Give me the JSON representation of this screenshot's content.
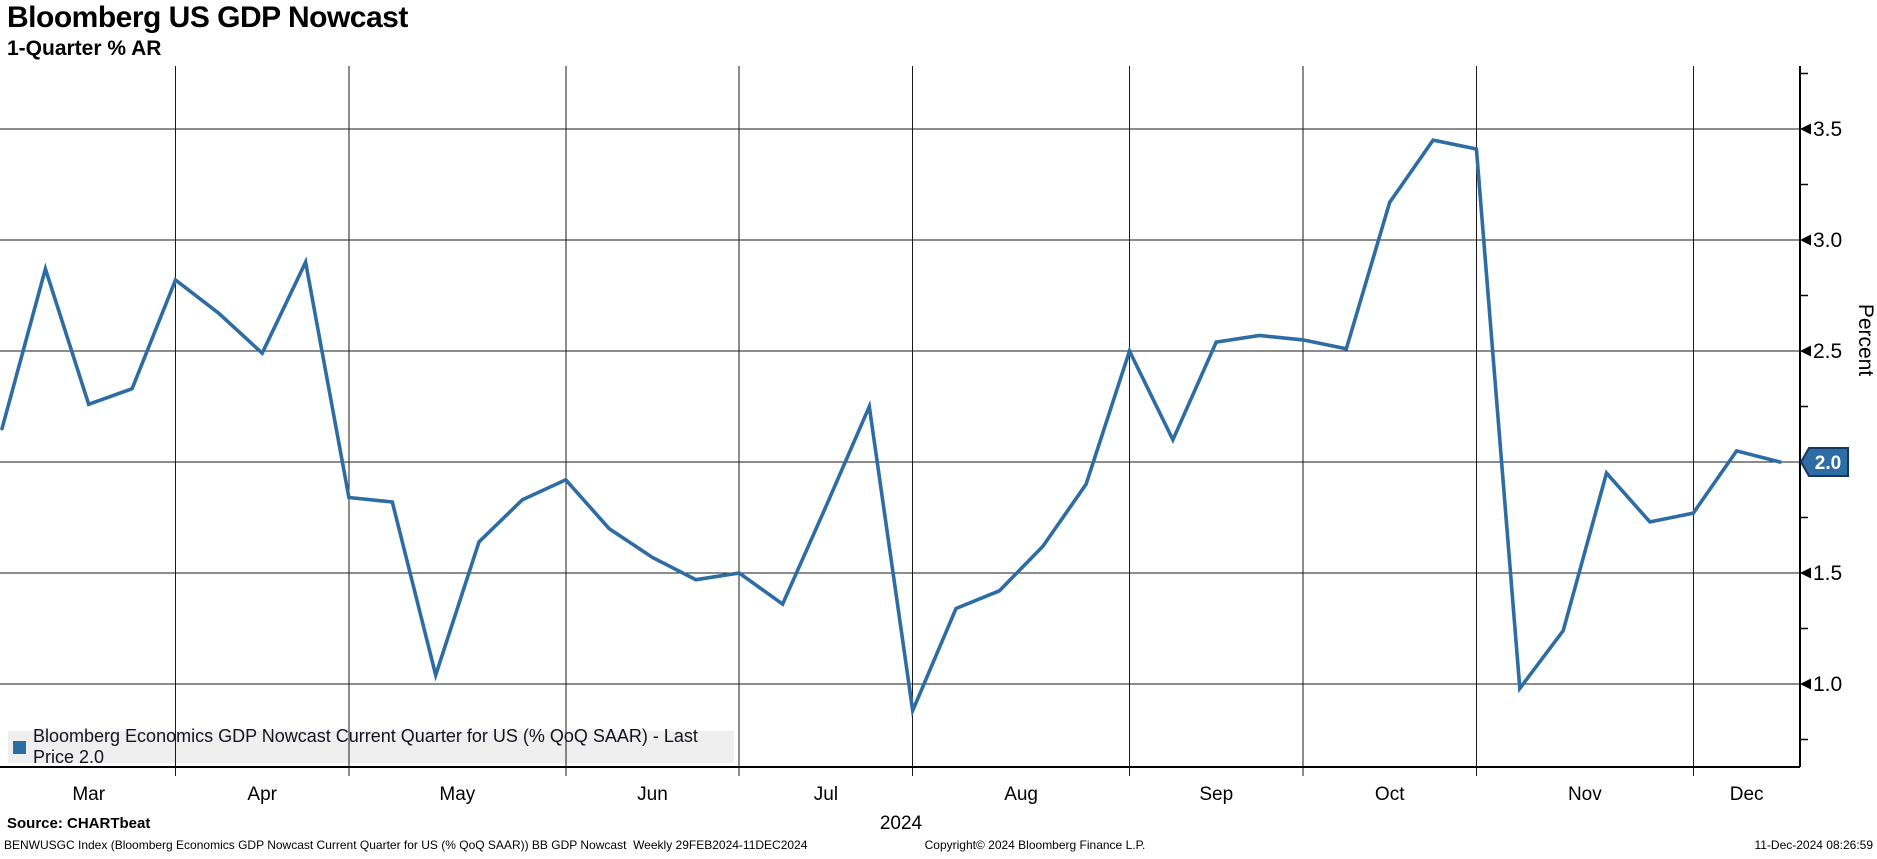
{
  "header": {
    "title": "Bloomberg US GDP Nowcast",
    "subtitle": "1-Quarter % AR"
  },
  "chart_data": {
    "type": "line",
    "title": "Bloomberg US GDP Nowcast",
    "subtitle": "1-Quarter % AR",
    "series_name": "Bloomberg Economics GDP Nowcast Current Quarter for US (% QoQ SAAR)",
    "frequency": "Weekly",
    "x": [
      "Feb 29",
      "Mar 6",
      "Mar 13",
      "Mar 20",
      "Mar 27",
      "Apr 3",
      "Apr 10",
      "Apr 17",
      "Apr 24",
      "May 1",
      "May 8",
      "May 15",
      "May 22",
      "May 29",
      "Jun 5",
      "Jun 12",
      "Jun 19",
      "Jun 26",
      "Jul 3",
      "Jul 10",
      "Jul 17",
      "Jul 24",
      "Jul 31",
      "Aug 7",
      "Aug 14",
      "Aug 21",
      "Aug 28",
      "Sep 4",
      "Sep 11",
      "Sep 18",
      "Sep 25",
      "Oct 2",
      "Oct 9",
      "Oct 16",
      "Oct 23",
      "Oct 30",
      "Nov 6",
      "Nov 13",
      "Nov 20",
      "Nov 27",
      "Dec 4",
      "Dec 11"
    ],
    "values": [
      2.15,
      2.87,
      2.26,
      2.33,
      2.82,
      2.67,
      2.49,
      2.9,
      1.84,
      1.82,
      1.04,
      1.64,
      1.83,
      1.92,
      1.7,
      1.57,
      1.47,
      1.5,
      1.36,
      1.8,
      2.25,
      0.88,
      1.34,
      1.42,
      1.62,
      1.9,
      2.5,
      2.1,
      2.54,
      2.57,
      2.55,
      2.51,
      3.17,
      3.45,
      3.41,
      0.98,
      1.24,
      1.95,
      1.73,
      1.77,
      2.05,
      2.0
    ],
    "last_price": "2.0",
    "ylabel": "Percent",
    "ylabel_side": "right",
    "ylim": [
      0.62,
      3.78
    ],
    "yticks_major": [
      3.5,
      3.0,
      2.5,
      2.0,
      1.5,
      1.0
    ],
    "ytick_labels": [
      "3.5",
      "3.0",
      "2.5",
      "2.0",
      "1.5",
      "1.0"
    ],
    "yticks_minor": [
      3.75,
      3.25,
      2.75,
      2.25,
      1.75,
      1.25,
      0.75
    ],
    "month_labels": [
      "Mar",
      "Apr",
      "May",
      "Jun",
      "Jul",
      "Aug",
      "Sep",
      "Oct",
      "Nov",
      "Dec"
    ],
    "month_divider_after_index": [
      4,
      8,
      13,
      17,
      21,
      26,
      30,
      34,
      39
    ],
    "year_label": "2024",
    "grid": "both",
    "legend_position": "bottom-left",
    "line_color": "#2E6DA4",
    "badge_fill": "#2E6DA4",
    "badge_border": "#17365D",
    "grid_color": "#1a1a1a",
    "legend_strip_color": "#EFEFEF"
  },
  "legend": {
    "label": "Bloomberg Economics GDP Nowcast Current Quarter for US (% QoQ SAAR) - Last Price 2.0",
    "marker_color": "#2B6CA3"
  },
  "axis": {
    "last_price_badge": "2.0",
    "percent_label": "Percent",
    "year_label": "2024"
  },
  "footer": {
    "source": "Source: CHARTbeat",
    "fine_print": "BENWUSGC Index (Bloomberg Economics GDP Nowcast Current Quarter for US (% QoQ SAAR)) BB GDP Nowcast  Weekly 29FEB2024-11DEC2024",
    "copyright": "Copyright© 2024 Bloomberg Finance L.P.",
    "datetime": "11-Dec-2024 08:26:59"
  }
}
